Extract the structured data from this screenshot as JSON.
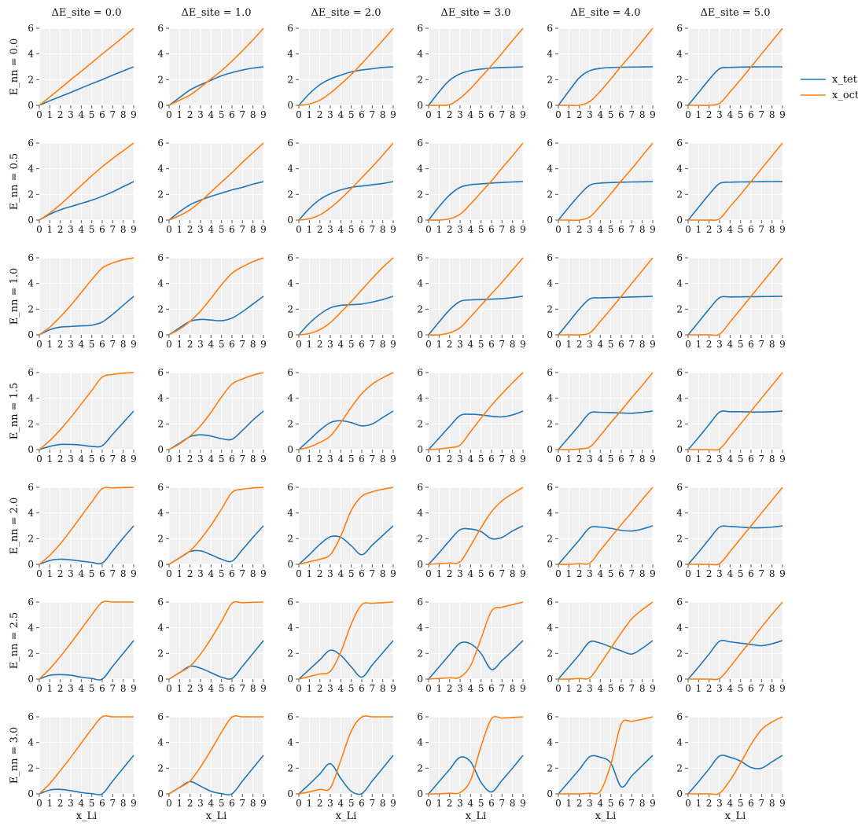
{
  "chart_data": {
    "type": "line",
    "layout": "grid",
    "col_param": "ΔE_site",
    "row_param": "E_nn",
    "columns": [
      0.0,
      1.0,
      2.0,
      3.0,
      4.0,
      5.0
    ],
    "rows": [
      0.0,
      0.5,
      1.0,
      1.5,
      2.0,
      2.5,
      3.0
    ],
    "column_titles": [
      "ΔE_site = 0.0",
      "ΔE_site = 1.0",
      "ΔE_site = 2.0",
      "ΔE_site = 3.0",
      "ΔE_site = 4.0",
      "ΔE_site = 5.0"
    ],
    "row_titles": [
      "E_nn = 0.0",
      "E_nn = 0.5",
      "E_nn = 1.0",
      "E_nn = 1.5",
      "E_nn = 2.0",
      "E_nn = 2.5",
      "E_nn = 3.0"
    ],
    "xlabel": "x_Li",
    "xlim": [
      0,
      9
    ],
    "ylim": [
      0,
      6
    ],
    "xticks": [
      0,
      1,
      2,
      3,
      4,
      5,
      6,
      7,
      8,
      9
    ],
    "yticks": [
      0,
      2,
      4,
      6
    ],
    "grid": true,
    "legend_position": "right",
    "series_names": [
      "x_tet",
      "x_oct"
    ],
    "colors": {
      "x_tet": "#1f77b4",
      "x_oct": "#ff7f0e"
    },
    "x": [
      0,
      1,
      2,
      3,
      4,
      5,
      6,
      7,
      8,
      9
    ],
    "panels": [
      [
        {
          "x_tet": [
            0,
            0.35,
            0.68,
            1.0,
            1.35,
            1.68,
            2.0,
            2.35,
            2.68,
            3.0
          ],
          "x_oct": [
            0,
            0.65,
            1.32,
            2.0,
            2.65,
            3.32,
            4.0,
            4.65,
            5.32,
            6.0
          ]
        },
        {
          "x_tet": [
            0,
            0.6,
            1.2,
            1.6,
            1.95,
            2.3,
            2.55,
            2.75,
            2.9,
            3.0
          ],
          "x_oct": [
            0,
            0.4,
            0.8,
            1.4,
            2.05,
            2.7,
            3.45,
            4.25,
            5.1,
            6.0
          ]
        },
        {
          "x_tet": [
            0,
            0.9,
            1.6,
            2.05,
            2.35,
            2.6,
            2.75,
            2.85,
            2.95,
            3.0
          ],
          "x_oct": [
            0,
            0.1,
            0.4,
            0.95,
            1.65,
            2.4,
            3.25,
            4.15,
            5.05,
            6.0
          ]
        },
        {
          "x_tet": [
            0,
            1.05,
            1.95,
            2.45,
            2.7,
            2.82,
            2.9,
            2.94,
            2.97,
            3.0
          ],
          "x_oct": [
            0,
            0.0,
            0.05,
            0.55,
            1.3,
            2.2,
            3.1,
            4.05,
            5.05,
            6.0
          ]
        },
        {
          "x_tet": [
            0,
            1.1,
            2.15,
            2.7,
            2.88,
            2.94,
            2.97,
            2.98,
            2.99,
            3.0
          ],
          "x_oct": [
            0,
            0.0,
            0.0,
            0.3,
            1.1,
            2.05,
            3.05,
            4.0,
            5.0,
            6.0
          ]
        },
        {
          "x_tet": [
            0,
            1.0,
            2.0,
            2.85,
            2.95,
            2.98,
            2.99,
            3.0,
            3.0,
            3.0
          ],
          "x_oct": [
            0,
            0.0,
            0.0,
            0.15,
            1.05,
            2.0,
            3.0,
            4.0,
            5.0,
            6.0
          ]
        }
      ],
      [
        {
          "x_tet": [
            0,
            0.45,
            0.8,
            1.05,
            1.3,
            1.55,
            1.85,
            2.2,
            2.6,
            3.0
          ],
          "x_oct": [
            0,
            0.55,
            1.2,
            1.95,
            2.7,
            3.45,
            4.15,
            4.8,
            5.4,
            6.0
          ]
        },
        {
          "x_tet": [
            0,
            0.65,
            1.2,
            1.55,
            1.85,
            2.1,
            2.35,
            2.55,
            2.8,
            3.0
          ],
          "x_oct": [
            0,
            0.35,
            0.8,
            1.45,
            2.2,
            2.95,
            3.7,
            4.5,
            5.25,
            6.0
          ]
        },
        {
          "x_tet": [
            0,
            0.9,
            1.6,
            2.05,
            2.35,
            2.55,
            2.65,
            2.75,
            2.85,
            3.0
          ],
          "x_oct": [
            0,
            0.1,
            0.4,
            0.95,
            1.65,
            2.45,
            3.3,
            4.15,
            5.05,
            6.0
          ]
        },
        {
          "x_tet": [
            0,
            1.05,
            1.95,
            2.55,
            2.75,
            2.82,
            2.88,
            2.93,
            2.97,
            3.0
          ],
          "x_oct": [
            0,
            0.0,
            0.1,
            0.45,
            1.25,
            2.15,
            3.05,
            4.05,
            5.0,
            6.0
          ]
        },
        {
          "x_tet": [
            0,
            1.0,
            1.95,
            2.72,
            2.88,
            2.92,
            2.95,
            2.97,
            2.98,
            3.0
          ],
          "x_oct": [
            0,
            0.0,
            0.0,
            0.25,
            1.1,
            2.05,
            3.05,
            4.0,
            5.0,
            6.0
          ]
        },
        {
          "x_tet": [
            0,
            1.0,
            2.0,
            2.85,
            2.95,
            2.97,
            2.98,
            2.99,
            3.0,
            3.0
          ],
          "x_oct": [
            0,
            0.0,
            0.0,
            0.1,
            1.05,
            2.0,
            3.0,
            4.0,
            5.0,
            6.0
          ]
        }
      ],
      [
        {
          "x_tet": [
            0,
            0.4,
            0.6,
            0.65,
            0.7,
            0.75,
            1.0,
            1.6,
            2.3,
            3.0
          ],
          "x_oct": [
            0,
            0.6,
            1.4,
            2.3,
            3.3,
            4.3,
            5.2,
            5.6,
            5.85,
            6.0
          ]
        },
        {
          "x_tet": [
            0,
            0.55,
            1.05,
            1.2,
            1.15,
            1.1,
            1.3,
            1.8,
            2.4,
            3.0
          ],
          "x_oct": [
            0,
            0.45,
            1.05,
            1.85,
            2.85,
            3.9,
            4.8,
            5.3,
            5.7,
            6.0
          ]
        },
        {
          "x_tet": [
            0,
            0.9,
            1.6,
            2.1,
            2.3,
            2.35,
            2.4,
            2.55,
            2.75,
            3.0
          ],
          "x_oct": [
            0,
            0.1,
            0.4,
            0.95,
            1.75,
            2.6,
            3.5,
            4.4,
            5.25,
            6.0
          ]
        },
        {
          "x_tet": [
            0,
            1.0,
            1.95,
            2.6,
            2.72,
            2.75,
            2.78,
            2.82,
            2.9,
            3.0
          ],
          "x_oct": [
            0,
            0.0,
            0.15,
            0.55,
            1.4,
            2.3,
            3.2,
            4.1,
            5.05,
            6.0
          ]
        },
        {
          "x_tet": [
            0,
            1.0,
            2.0,
            2.8,
            2.88,
            2.9,
            2.92,
            2.95,
            2.97,
            3.0
          ],
          "x_oct": [
            0,
            0.0,
            0.0,
            0.15,
            1.05,
            2.0,
            3.0,
            4.0,
            5.0,
            6.0
          ]
        },
        {
          "x_tet": [
            0,
            1.0,
            2.0,
            2.9,
            2.95,
            2.96,
            2.97,
            2.98,
            2.99,
            3.0
          ],
          "x_oct": [
            0,
            0.0,
            0.0,
            0.05,
            1.0,
            2.0,
            3.0,
            4.0,
            5.0,
            6.0
          ]
        }
      ],
      [
        {
          "x_tet": [
            0,
            0.25,
            0.4,
            0.4,
            0.35,
            0.25,
            0.3,
            1.2,
            2.1,
            3.0
          ],
          "x_oct": [
            0,
            0.7,
            1.55,
            2.5,
            3.55,
            4.6,
            5.65,
            5.85,
            5.95,
            6.0
          ]
        },
        {
          "x_tet": [
            0,
            0.5,
            1.0,
            1.15,
            1.05,
            0.85,
            0.8,
            1.5,
            2.3,
            3.0
          ],
          "x_oct": [
            0,
            0.45,
            1.05,
            1.85,
            2.9,
            4.1,
            5.1,
            5.5,
            5.8,
            6.0
          ]
        },
        {
          "x_tet": [
            0,
            0.75,
            1.5,
            2.1,
            2.25,
            2.1,
            1.85,
            2.0,
            2.5,
            3.0
          ],
          "x_oct": [
            0,
            0.2,
            0.55,
            1.05,
            2.1,
            3.3,
            4.35,
            5.1,
            5.6,
            6.0
          ]
        },
        {
          "x_tet": [
            0,
            0.9,
            1.8,
            2.65,
            2.75,
            2.7,
            2.6,
            2.55,
            2.7,
            3.0
          ],
          "x_oct": [
            0,
            0.05,
            0.15,
            0.35,
            1.4,
            2.45,
            3.45,
            4.35,
            5.2,
            6.0
          ]
        },
        {
          "x_tet": [
            0,
            0.95,
            1.9,
            2.85,
            2.9,
            2.88,
            2.85,
            2.83,
            2.9,
            3.0
          ],
          "x_oct": [
            0,
            0.0,
            0.05,
            0.2,
            1.1,
            2.1,
            3.05,
            4.05,
            5.0,
            6.0
          ]
        },
        {
          "x_tet": [
            0,
            0.95,
            1.95,
            2.92,
            2.95,
            2.95,
            2.93,
            2.93,
            2.95,
            3.0
          ],
          "x_oct": [
            0,
            0.0,
            0.0,
            0.05,
            1.0,
            2.0,
            3.0,
            4.0,
            5.0,
            6.0
          ]
        }
      ],
      [
        {
          "x_tet": [
            0,
            0.3,
            0.4,
            0.35,
            0.25,
            0.15,
            0.1,
            1.05,
            2.05,
            3.0
          ],
          "x_oct": [
            0,
            0.7,
            1.6,
            2.65,
            3.75,
            4.85,
            5.9,
            5.95,
            5.98,
            6.0
          ]
        },
        {
          "x_tet": [
            0,
            0.5,
            1.0,
            1.05,
            0.75,
            0.4,
            0.25,
            1.15,
            2.1,
            3.0
          ],
          "x_oct": [
            0,
            0.5,
            1.05,
            1.95,
            3.05,
            4.3,
            5.6,
            5.85,
            5.95,
            6.0
          ]
        },
        {
          "x_tet": [
            0,
            0.75,
            1.55,
            2.15,
            2.1,
            1.45,
            0.75,
            1.5,
            2.25,
            3.0
          ],
          "x_oct": [
            0,
            0.2,
            0.4,
            0.75,
            2.2,
            4.2,
            5.3,
            5.65,
            5.85,
            6.0
          ]
        },
        {
          "x_tet": [
            0,
            0.9,
            1.85,
            2.7,
            2.75,
            2.55,
            2.0,
            2.1,
            2.6,
            3.0
          ],
          "x_oct": [
            0,
            0.05,
            0.1,
            0.2,
            1.45,
            2.85,
            4.1,
            4.95,
            5.5,
            6.0
          ]
        },
        {
          "x_tet": [
            0,
            0.95,
            1.9,
            2.85,
            2.9,
            2.8,
            2.65,
            2.6,
            2.75,
            3.0
          ],
          "x_oct": [
            0,
            0.0,
            0.05,
            0.1,
            1.1,
            2.1,
            3.1,
            4.05,
            5.05,
            6.0
          ]
        },
        {
          "x_tet": [
            0,
            0.95,
            1.95,
            2.9,
            2.95,
            2.9,
            2.85,
            2.85,
            2.9,
            3.0
          ],
          "x_oct": [
            0,
            0.0,
            0.0,
            0.05,
            1.0,
            2.0,
            3.0,
            4.0,
            5.0,
            6.0
          ]
        }
      ],
      [
        {
          "x_tet": [
            0,
            0.3,
            0.35,
            0.3,
            0.15,
            0.05,
            0.0,
            1.0,
            2.0,
            3.0
          ],
          "x_oct": [
            0,
            0.8,
            1.75,
            2.8,
            3.9,
            5.0,
            5.98,
            6.0,
            6.0,
            6.0
          ]
        },
        {
          "x_tet": [
            0,
            0.5,
            1.0,
            0.85,
            0.5,
            0.15,
            0.05,
            1.0,
            2.0,
            3.0
          ],
          "x_oct": [
            0,
            0.5,
            1.0,
            1.95,
            3.15,
            4.5,
            5.9,
            5.95,
            5.98,
            6.0
          ]
        },
        {
          "x_tet": [
            0,
            0.75,
            1.5,
            2.25,
            1.85,
            0.95,
            0.15,
            1.1,
            2.05,
            3.0
          ],
          "x_oct": [
            0,
            0.2,
            0.4,
            0.6,
            2.1,
            4.3,
            5.8,
            5.9,
            5.95,
            6.0
          ]
        },
        {
          "x_tet": [
            0,
            0.95,
            1.9,
            2.8,
            2.75,
            2.0,
            0.75,
            1.45,
            2.2,
            3.0
          ],
          "x_oct": [
            0,
            0.05,
            0.1,
            0.15,
            1.05,
            3.15,
            5.3,
            5.6,
            5.8,
            6.0
          ]
        },
        {
          "x_tet": [
            0,
            0.95,
            1.9,
            2.9,
            2.8,
            2.5,
            2.2,
            1.95,
            2.4,
            3.0
          ],
          "x_oct": [
            0,
            0.0,
            0.05,
            0.1,
            1.2,
            2.4,
            3.6,
            4.7,
            5.4,
            6.0
          ]
        },
        {
          "x_tet": [
            0,
            0.95,
            1.95,
            2.95,
            2.9,
            2.8,
            2.7,
            2.6,
            2.75,
            3.0
          ],
          "x_oct": [
            0,
            0.0,
            0.0,
            0.05,
            0.95,
            2.0,
            3.0,
            4.05,
            5.05,
            6.0
          ]
        }
      ],
      [
        {
          "x_tet": [
            0,
            0.3,
            0.35,
            0.25,
            0.1,
            0.02,
            0.0,
            1.0,
            2.0,
            3.0
          ],
          "x_oct": [
            0,
            0.8,
            1.8,
            2.85,
            3.95,
            5.05,
            6.0,
            6.0,
            6.0,
            6.0
          ]
        },
        {
          "x_tet": [
            0,
            0.5,
            0.95,
            0.6,
            0.2,
            0.02,
            0.0,
            1.0,
            2.0,
            3.0
          ],
          "x_oct": [
            0,
            0.5,
            1.0,
            2.1,
            3.4,
            4.8,
            5.98,
            6.0,
            6.0,
            6.0
          ]
        },
        {
          "x_tet": [
            0,
            0.75,
            1.55,
            2.35,
            1.2,
            0.2,
            0.02,
            1.0,
            2.0,
            3.0
          ],
          "x_oct": [
            0,
            0.15,
            0.35,
            0.45,
            2.6,
            4.9,
            5.98,
            6.0,
            6.0,
            6.0
          ]
        },
        {
          "x_tet": [
            0,
            0.95,
            1.9,
            2.85,
            2.5,
            0.9,
            0.15,
            1.05,
            2.0,
            3.0
          ],
          "x_oct": [
            0,
            0.0,
            0.05,
            0.1,
            1.05,
            3.7,
            5.85,
            5.9,
            5.95,
            6.0
          ]
        },
        {
          "x_tet": [
            0,
            0.95,
            1.9,
            2.9,
            2.85,
            2.4,
            0.55,
            1.4,
            2.2,
            3.0
          ],
          "x_oct": [
            0,
            0.0,
            0.0,
            0.05,
            0.2,
            2.3,
            5.45,
            5.65,
            5.8,
            6.0
          ]
        },
        {
          "x_tet": [
            0,
            0.95,
            1.95,
            2.95,
            2.85,
            2.55,
            2.05,
            2.0,
            2.5,
            3.0
          ],
          "x_oct": [
            0,
            0.0,
            0.0,
            0.05,
            1.05,
            2.4,
            3.85,
            5.0,
            5.6,
            6.0
          ]
        }
      ]
    ]
  }
}
